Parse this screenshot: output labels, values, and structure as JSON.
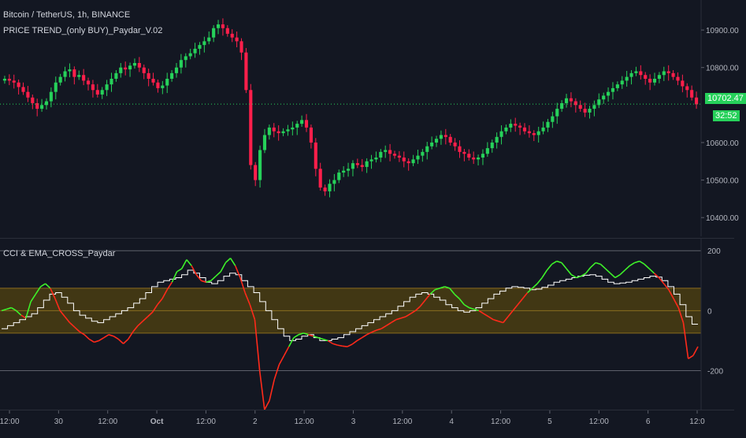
{
  "legend": {
    "symbol": "Bitcoin / TetherUS, 1h, BINANCE",
    "indicator": "PRICE TREND_(only BUY)_Paydar_V.02",
    "oscillator": "CCI & EMA_CROSS_Paydar"
  },
  "price_tags": {
    "last": "10702.47",
    "countdown": "32:52"
  },
  "colors": {
    "background": "#131722",
    "up": "#26d15a",
    "down": "#ff1f4b",
    "cci_up": "#3ef22a",
    "cci_down": "#ff2a1a",
    "ema": "#ffffff",
    "band": "#4a3d12",
    "band_line": "#8a6d1f",
    "tag_green": "#26d15a",
    "axis_text": "#b2b5be"
  },
  "chart_data": [
    {
      "type": "candlestick",
      "title": "Bitcoin / TetherUS, 1h, BINANCE",
      "ylim": [
        10350,
        10980
      ],
      "y_ticks": [
        "10900.00",
        "10800.00",
        "10600.00",
        "10500.00",
        "10400.00"
      ],
      "closes": [
        10770,
        10765,
        10760,
        10748,
        10735,
        10720,
        10705,
        10690,
        10700,
        10710,
        10735,
        10760,
        10775,
        10790,
        10795,
        10775,
        10780,
        10765,
        10755,
        10740,
        10728,
        10740,
        10755,
        10770,
        10785,
        10800,
        10795,
        10805,
        10812,
        10800,
        10785,
        10770,
        10760,
        10745,
        10752,
        10770,
        10785,
        10800,
        10820,
        10830,
        10838,
        10850,
        10860,
        10870,
        10880,
        10905,
        10915,
        10905,
        10890,
        10880,
        10870,
        10840,
        10740,
        10540,
        10500,
        10580,
        10620,
        10640,
        10630,
        10625,
        10630,
        10635,
        10640,
        10650,
        10660,
        10640,
        10600,
        10530,
        10480,
        10470,
        10490,
        10500,
        10520,
        10525,
        10530,
        10545,
        10540,
        10535,
        10550,
        10555,
        10560,
        10575,
        10580,
        10570,
        10565,
        10560,
        10550,
        10545,
        10555,
        10565,
        10575,
        10590,
        10600,
        10610,
        10620,
        10615,
        10600,
        10590,
        10575,
        10570,
        10560,
        10555,
        10560,
        10570,
        10585,
        10600,
        10615,
        10630,
        10640,
        10650,
        10645,
        10640,
        10630,
        10625,
        10620,
        10630,
        10640,
        10655,
        10670,
        10690,
        10705,
        10718,
        10710,
        10700,
        10690,
        10680,
        10690,
        10700,
        10715,
        10725,
        10735,
        10745,
        10755,
        10765,
        10775,
        10785,
        10790,
        10780,
        10770,
        10760,
        10770,
        10780,
        10790,
        10785,
        10775,
        10765,
        10750,
        10740,
        10720,
        10702
      ],
      "last_price": 10702.47
    },
    {
      "type": "line",
      "title": "CCI & EMA_CROSS_Paydar",
      "ylim": [
        -330,
        240
      ],
      "y_ticks": [
        200,
        0,
        -200
      ],
      "levels": [
        200,
        75,
        0,
        -75,
        -200
      ],
      "series": [],
      "cci": [
        0,
        5,
        10,
        0,
        -15,
        -25,
        30,
        55,
        80,
        90,
        75,
        40,
        0,
        -20,
        -40,
        -55,
        -70,
        -80,
        -95,
        -105,
        -100,
        -90,
        -80,
        -85,
        -95,
        -110,
        -95,
        -70,
        -50,
        -35,
        -20,
        -5,
        20,
        40,
        70,
        95,
        130,
        140,
        170,
        150,
        120,
        100,
        95,
        100,
        115,
        130,
        160,
        175,
        150,
        110,
        60,
        20,
        -30,
        -200,
        -330,
        -300,
        -230,
        -180,
        -150,
        -120,
        -90,
        -80,
        -75,
        -80,
        -85,
        -90,
        -95,
        -100,
        -110,
        -115,
        -118,
        -120,
        -112,
        -100,
        -90,
        -80,
        -72,
        -65,
        -60,
        -50,
        -40,
        -30,
        -25,
        -20,
        -10,
        0,
        15,
        35,
        55,
        70,
        75,
        80,
        75,
        55,
        40,
        20,
        10,
        5,
        0,
        -10,
        -20,
        -30,
        -35,
        -40,
        -20,
        0,
        20,
        40,
        60,
        75,
        90,
        110,
        135,
        155,
        165,
        160,
        140,
        120,
        110,
        115,
        125,
        145,
        160,
        155,
        140,
        125,
        110,
        120,
        135,
        150,
        160,
        165,
        155,
        140,
        125,
        110,
        90,
        70,
        40,
        10,
        -40,
        -160,
        -150,
        -120
      ],
      "ema": [
        -60,
        -50,
        -40,
        -30,
        -20,
        -10,
        10,
        35,
        55,
        60,
        45,
        25,
        0,
        -15,
        -25,
        -35,
        -40,
        -30,
        -20,
        -10,
        0,
        10,
        25,
        40,
        60,
        80,
        95,
        100,
        105,
        110,
        120,
        135,
        125,
        110,
        95,
        90,
        100,
        115,
        125,
        120,
        100,
        80,
        60,
        30,
        0,
        -30,
        -60,
        -85,
        -100,
        -95,
        -85,
        -80,
        -90,
        -100,
        -100,
        -95,
        -90,
        -80,
        -70,
        -60,
        -50,
        -40,
        -30,
        -20,
        -10,
        0,
        15,
        30,
        45,
        55,
        60,
        55,
        45,
        35,
        20,
        10,
        0,
        -5,
        0,
        10,
        25,
        40,
        55,
        65,
        75,
        80,
        78,
        75,
        70,
        72,
        78,
        85,
        95,
        100,
        105,
        110,
        115,
        118,
        120,
        115,
        105,
        95,
        90,
        92,
        95,
        100,
        105,
        110,
        115,
        112,
        100,
        80,
        55,
        20,
        -20,
        -45
      ]
    }
  ],
  "x_axis": {
    "labels": [
      "12:00",
      "30",
      "12:00",
      "Oct",
      "12:00",
      "2",
      "12:00",
      "3",
      "12:00",
      "4",
      "12:00",
      "5",
      "12:00",
      "6",
      "12:0"
    ],
    "bold": [
      "Oct"
    ]
  }
}
